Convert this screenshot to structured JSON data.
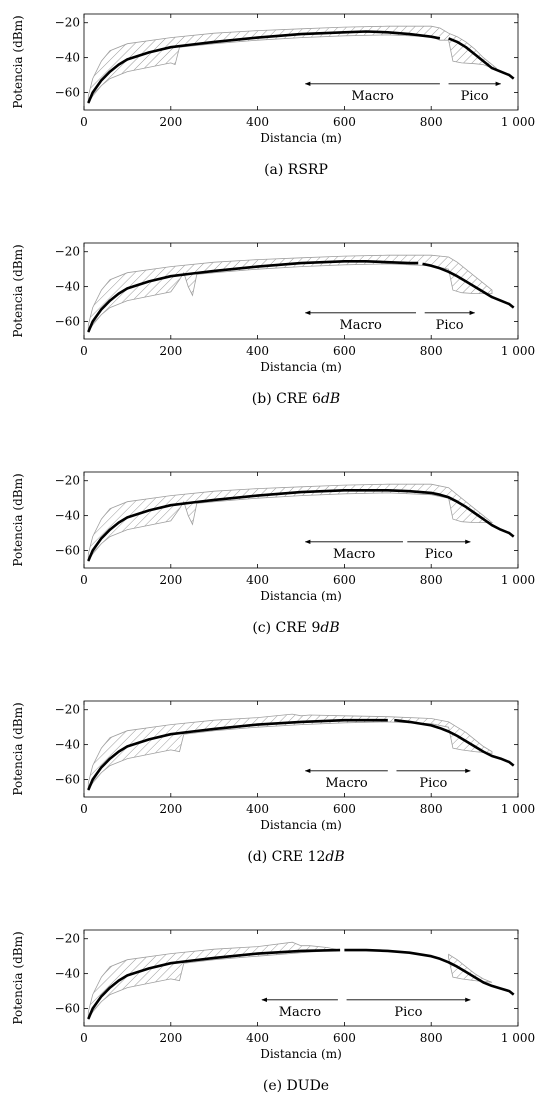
{
  "chart_data": [
    {
      "type": "line",
      "caption": "(a) RSRP",
      "xlabel": "Distancia (m)",
      "ylabel": "Potencia (dBm)",
      "xlim": [
        0,
        1000
      ],
      "ylim": [
        -70,
        -15
      ],
      "xticks": [
        "0",
        "200",
        "400",
        "600",
        "800",
        "1 000"
      ],
      "yticks": [
        "−20",
        "−40",
        "−60"
      ],
      "grid": false,
      "boundary_x": 830,
      "macro_label": "Macro",
      "pico_label": "Pico",
      "macro_arrow": [
        510,
        820
      ],
      "pico_arrow": [
        840,
        960
      ],
      "series": [
        {
          "x": [
            10,
            20,
            40,
            60,
            80,
            100,
            150,
            200,
            250,
            300,
            400,
            500,
            600,
            650,
            700,
            750,
            800,
            820
          ],
          "y": [
            -66,
            -60,
            -53,
            -48,
            -44,
            -41,
            -37,
            -34,
            -32.5,
            -31,
            -28.5,
            -26.5,
            -25.5,
            -25,
            -25.5,
            -26.5,
            -28,
            -29
          ]
        },
        {
          "x": [
            840,
            860,
            880,
            900,
            920,
            940,
            960,
            980,
            990
          ],
          "y": [
            -29,
            -31,
            -34,
            -38,
            -42,
            -46,
            -48,
            -50,
            -52
          ]
        }
      ],
      "band_upper": {
        "x": [
          10,
          20,
          40,
          60,
          100,
          200,
          300,
          400,
          500,
          600,
          700,
          800,
          820,
          840,
          860,
          880,
          900,
          920,
          940,
          950
        ],
        "y": [
          -62,
          -52,
          -42,
          -36,
          -32,
          -28.5,
          -26,
          -24.5,
          -23.5,
          -22.5,
          -22,
          -22,
          -23,
          -26,
          -28,
          -31,
          -35,
          -40,
          -44,
          -46
        ]
      },
      "band_lower": {
        "x": [
          10,
          20,
          40,
          60,
          100,
          200,
          210,
          220,
          300,
          400,
          500,
          600,
          700,
          800,
          820,
          840,
          850,
          870,
          900,
          920,
          940,
          950
        ],
        "y": [
          -66,
          -62,
          -56,
          -52,
          -48,
          -43,
          -44,
          -34,
          -32,
          -30,
          -28.5,
          -27.5,
          -27,
          -28,
          -30,
          -30,
          -42,
          -43,
          -43.5,
          -44,
          -46,
          -46
        ]
      }
    },
    {
      "type": "line",
      "caption": "(b) CRE 6dB",
      "caption_plain": "(b) CRE",
      "caption_math": "6dB",
      "xlabel": "Distancia (m)",
      "ylabel": "Potencia (dBm)",
      "xlim": [
        0,
        1000
      ],
      "ylim": [
        -70,
        -15
      ],
      "xticks": [
        "0",
        "200",
        "400",
        "600",
        "800",
        "1 000"
      ],
      "yticks": [
        "−20",
        "−40",
        "−60"
      ],
      "grid": false,
      "boundary_x": 775,
      "macro_label": "Macro",
      "pico_label": "Pico",
      "macro_arrow": [
        510,
        765
      ],
      "pico_arrow": [
        785,
        900
      ],
      "series": [
        {
          "x": [
            10,
            20,
            40,
            60,
            80,
            100,
            150,
            200,
            250,
            300,
            400,
            500,
            600,
            650,
            700,
            750,
            770
          ],
          "y": [
            -66,
            -60,
            -53,
            -48,
            -44,
            -41,
            -37,
            -34,
            -32.5,
            -31,
            -28.5,
            -26.5,
            -25.5,
            -25.5,
            -26,
            -26.5,
            -26.5
          ]
        },
        {
          "x": [
            780,
            800,
            820,
            840,
            860,
            880,
            900,
            920,
            940,
            960,
            980,
            990
          ],
          "y": [
            -27,
            -28,
            -29.5,
            -31.5,
            -34,
            -37,
            -40,
            -43,
            -46,
            -48,
            -50,
            -52
          ]
        }
      ],
      "band_upper": {
        "x": [
          10,
          20,
          40,
          60,
          100,
          200,
          300,
          400,
          500,
          600,
          700,
          800,
          840,
          860,
          880,
          900,
          920,
          940
        ],
        "y": [
          -62,
          -52,
          -42,
          -36,
          -32,
          -28.5,
          -26,
          -24.5,
          -23.5,
          -22.5,
          -22,
          -22,
          -23,
          -26,
          -30,
          -34,
          -38,
          -42
        ]
      },
      "band_lower": {
        "x": [
          10,
          20,
          40,
          60,
          100,
          200,
          220,
          230,
          240,
          250,
          260,
          300,
          400,
          500,
          600,
          700,
          800,
          840,
          850,
          870,
          900,
          920,
          940
        ],
        "y": [
          -66,
          -62,
          -56,
          -52,
          -48,
          -43,
          -36,
          -32,
          -40,
          -45,
          -33,
          -32,
          -30,
          -28.5,
          -27.5,
          -27,
          -28,
          -30,
          -42,
          -43.5,
          -44,
          -44,
          -44
        ]
      }
    },
    {
      "type": "line",
      "caption": "(c) CRE 9dB",
      "caption_plain": "(c) CRE",
      "caption_math": "9dB",
      "xlabel": "Distancia (m)",
      "ylabel": "Potencia (dBm)",
      "xlim": [
        0,
        1000
      ],
      "ylim": [
        -70,
        -15
      ],
      "xticks": [
        "0",
        "200",
        "400",
        "600",
        "800",
        "1 000"
      ],
      "yticks": [
        "−20",
        "−40",
        "−60"
      ],
      "grid": false,
      "boundary_x": null,
      "macro_label": "Macro",
      "pico_label": "Pico",
      "macro_arrow": [
        510,
        735
      ],
      "pico_arrow": [
        745,
        890
      ],
      "series": [
        {
          "x": [
            10,
            20,
            40,
            60,
            80,
            100,
            150,
            200,
            250,
            300,
            400,
            500,
            600,
            650,
            700,
            750,
            800,
            820,
            840,
            860,
            880,
            900,
            920,
            940,
            960,
            980,
            990
          ],
          "y": [
            -66,
            -60,
            -53,
            -48,
            -44,
            -41,
            -37,
            -34,
            -32.5,
            -31,
            -28.5,
            -26.5,
            -25.5,
            -25.5,
            -25.5,
            -26,
            -27,
            -28,
            -29.5,
            -32,
            -35,
            -38.5,
            -42,
            -45.5,
            -48,
            -50,
            -52
          ]
        }
      ],
      "band_upper": {
        "x": [
          10,
          20,
          40,
          60,
          100,
          200,
          300,
          400,
          500,
          600,
          700,
          800,
          840,
          860,
          880,
          900,
          920,
          940
        ],
        "y": [
          -62,
          -52,
          -42,
          -36,
          -32,
          -28.5,
          -26,
          -24.5,
          -23.5,
          -22.5,
          -22,
          -22,
          -24,
          -28,
          -32,
          -36,
          -40,
          -44
        ]
      },
      "band_lower": {
        "x": [
          10,
          20,
          40,
          60,
          100,
          200,
          220,
          230,
          240,
          250,
          260,
          300,
          400,
          500,
          600,
          700,
          800,
          840,
          850,
          870,
          900,
          920,
          940
        ],
        "y": [
          -66,
          -62,
          -56,
          -52,
          -48,
          -43,
          -36,
          -32,
          -40,
          -45,
          -33,
          -32,
          -30,
          -28.5,
          -27.5,
          -27,
          -28,
          -30,
          -42,
          -43.5,
          -44,
          -44,
          -44
        ]
      }
    },
    {
      "type": "line",
      "caption": "(d) CRE 12dB",
      "caption_plain": "(d) CRE",
      "caption_math": "12dB",
      "xlabel": "Distancia (m)",
      "ylabel": "Potencia (dBm)",
      "xlim": [
        0,
        1000
      ],
      "ylim": [
        -70,
        -15
      ],
      "xticks": [
        "0",
        "200",
        "400",
        "600",
        "800",
        "1 000"
      ],
      "yticks": [
        "−20",
        "−40",
        "−60"
      ],
      "grid": false,
      "boundary_x": 710,
      "macro_label": "Macro",
      "pico_label": "Pico",
      "macro_arrow": [
        510,
        700
      ],
      "pico_arrow": [
        720,
        890
      ],
      "series": [
        {
          "x": [
            10,
            20,
            40,
            60,
            80,
            100,
            150,
            200,
            250,
            300,
            400,
            500,
            600,
            650,
            700
          ],
          "y": [
            -66,
            -60,
            -53,
            -48,
            -44,
            -41,
            -37,
            -34,
            -32.5,
            -31,
            -28.5,
            -27,
            -26,
            -26,
            -26
          ]
        },
        {
          "x": [
            715,
            750,
            800,
            820,
            840,
            860,
            880,
            900,
            920,
            940,
            960,
            980,
            990
          ],
          "y": [
            -26,
            -27,
            -29,
            -30.5,
            -32.5,
            -35,
            -38,
            -41,
            -44,
            -46.5,
            -48,
            -50,
            -52
          ]
        }
      ],
      "band_upper": {
        "x": [
          10,
          20,
          40,
          60,
          100,
          200,
          300,
          400,
          480,
          500,
          520,
          600,
          700,
          800,
          840,
          860,
          880,
          900,
          920,
          940
        ],
        "y": [
          -62,
          -52,
          -42,
          -36,
          -32,
          -28.5,
          -26,
          -24.5,
          -22.5,
          -23.5,
          -23,
          -23.5,
          -24,
          -25,
          -27,
          -30,
          -33,
          -37,
          -41,
          -44
        ]
      },
      "band_lower": {
        "x": [
          10,
          20,
          40,
          60,
          100,
          200,
          220,
          230,
          300,
          400,
          500,
          600,
          700,
          800,
          840,
          850,
          870,
          900,
          920,
          940
        ],
        "y": [
          -66,
          -62,
          -56,
          -52,
          -48,
          -43,
          -44,
          -34,
          -32,
          -30,
          -28.5,
          -27.5,
          -27,
          -28,
          -30,
          -42,
          -43,
          -44,
          -44.5,
          -45
        ]
      }
    },
    {
      "type": "line",
      "caption": "(e) DUDe",
      "xlabel": "Distancia (m)",
      "ylabel": "Potencia (dBm)",
      "xlim": [
        0,
        1000
      ],
      "ylim": [
        -70,
        -15
      ],
      "xticks": [
        "0",
        "200",
        "400",
        "600",
        "800",
        "1 000"
      ],
      "yticks": [
        "−20",
        "−40",
        "−60"
      ],
      "grid": false,
      "boundary_x": 595,
      "macro_label": "Macro",
      "pico_label": "Pico",
      "macro_arrow": [
        410,
        585
      ],
      "pico_arrow": [
        605,
        890
      ],
      "series": [
        {
          "x": [
            10,
            20,
            40,
            60,
            80,
            100,
            150,
            200,
            250,
            300,
            400,
            500,
            590
          ],
          "y": [
            -66,
            -60,
            -53,
            -48,
            -44,
            -41,
            -37,
            -34,
            -32.5,
            -31,
            -28.5,
            -27,
            -26.5
          ]
        },
        {
          "x": [
            600,
            650,
            700,
            750,
            800,
            820,
            840,
            860,
            880,
            900,
            920,
            940,
            960,
            980,
            990
          ],
          "y": [
            -26.5,
            -26.5,
            -27,
            -28,
            -30,
            -31.5,
            -33.5,
            -36,
            -39,
            -42,
            -45,
            -47,
            -48.5,
            -50,
            -52
          ]
        }
      ],
      "band_upper": {
        "x": [
          10,
          20,
          40,
          60,
          100,
          200,
          300,
          400,
          480,
          500,
          520,
          560,
          580
        ],
        "y": [
          -62,
          -52,
          -42,
          -36,
          -32,
          -28.5,
          -26,
          -24.5,
          -22,
          -24,
          -24,
          -25,
          -26
        ]
      },
      "band_lower": {
        "x": [
          10,
          20,
          40,
          60,
          100,
          200,
          220,
          230,
          300,
          400,
          500,
          560,
          580
        ],
        "y": [
          -66,
          -62,
          -56,
          -52,
          -48,
          -43,
          -44,
          -34,
          -32,
          -30,
          -28,
          -27,
          -26.5
        ]
      },
      "band2_upper": {
        "x": [
          840,
          860,
          880,
          900,
          920,
          940
        ],
        "y": [
          -29,
          -32,
          -36,
          -40,
          -43,
          -45
        ]
      },
      "band2_lower": {
        "x": [
          840,
          850,
          870,
          900,
          920,
          940
        ],
        "y": [
          -31,
          -42,
          -43,
          -44,
          -44.5,
          -45
        ]
      }
    }
  ]
}
